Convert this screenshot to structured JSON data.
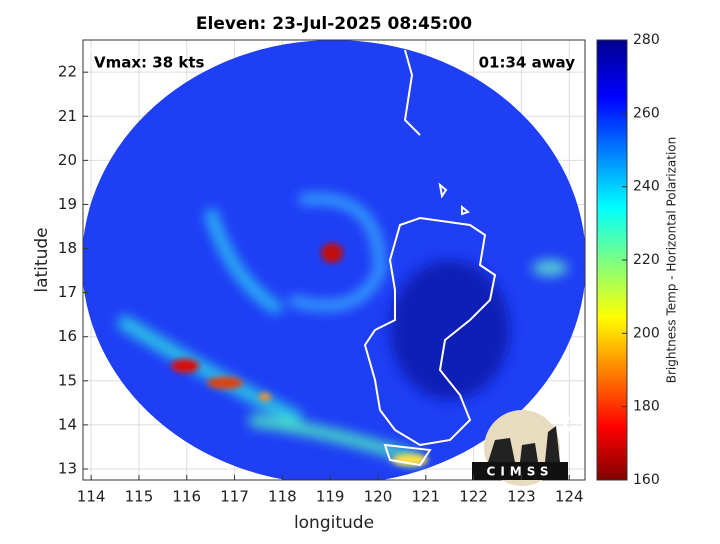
{
  "title": "Eleven: 23-Jul-2025 08:45:00",
  "annotations": {
    "vmax": "Vmax: 38 kts",
    "time_away": "01:34 away"
  },
  "x_axis": {
    "label": "longitude",
    "lim": [
      113.83,
      124.33
    ],
    "ticks": [
      114,
      115,
      116,
      117,
      118,
      119,
      120,
      121,
      122,
      123,
      124
    ]
  },
  "y_axis": {
    "label": "latitude",
    "lim": [
      12.75,
      22.73
    ],
    "ticks": [
      13,
      14,
      15,
      16,
      17,
      18,
      19,
      20,
      21,
      22
    ]
  },
  "colorbar": {
    "label": "Brightness Temp - Horizontal Polarization",
    "lim": [
      160,
      280
    ],
    "ticks": [
      160,
      180,
      200,
      220,
      240,
      260,
      280
    ]
  },
  "logo": "CIMSS"
}
